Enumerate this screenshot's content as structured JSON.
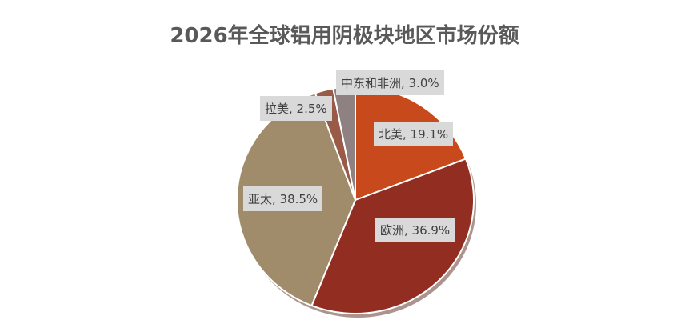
{
  "chart_data": {
    "type": "pie",
    "title": "2026年全球铝用阴极块地区市场份额",
    "categories": [
      "北美",
      "欧洲",
      "亚太",
      "拉美",
      "中东和非洲"
    ],
    "values": [
      19.1,
      36.9,
      38.5,
      2.5,
      3.0
    ],
    "labels": [
      "北美, 19.1%",
      "欧洲, 36.9%",
      "亚太, 38.5%",
      "拉美, 2.5%",
      "中东和非洲, 3.0%"
    ],
    "colors": [
      "#C84A1C",
      "#922D22",
      "#A08C6A",
      "#9A5A48",
      "#8F8082"
    ],
    "start_angle": "12 o'clock",
    "direction": "clockwise",
    "legend": "none"
  }
}
